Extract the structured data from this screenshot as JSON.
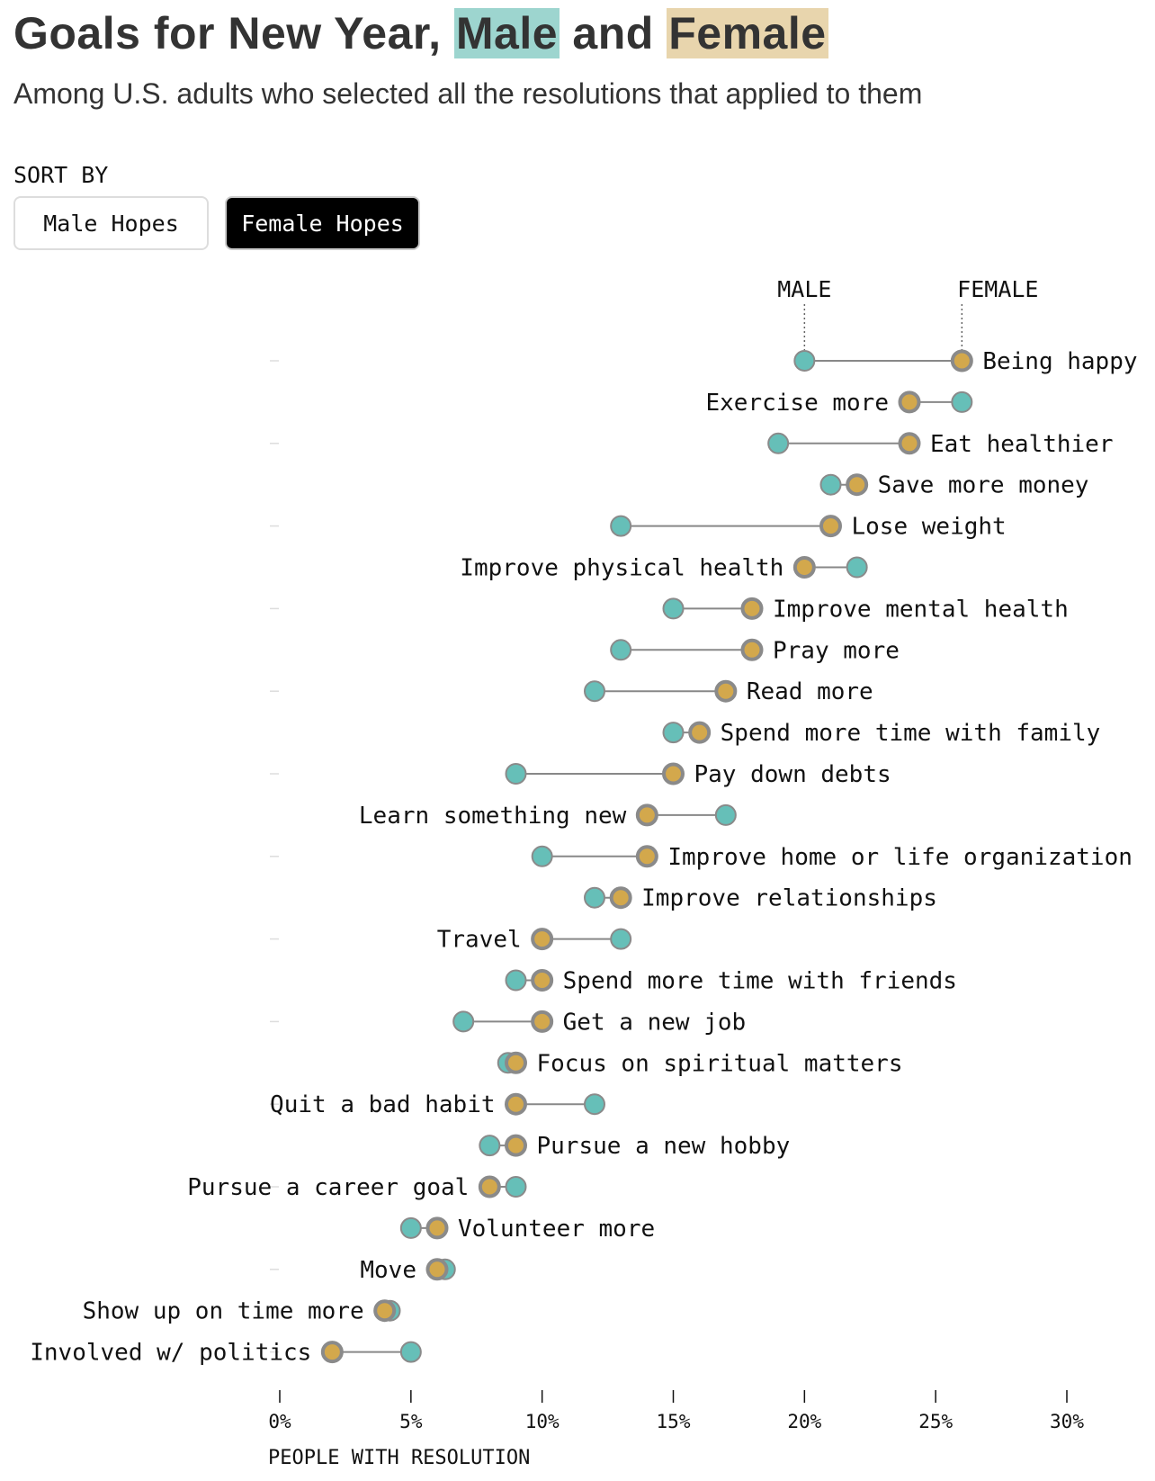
{
  "header": {
    "title_prefix": "Goals for New Year, ",
    "title_male": "Male",
    "title_and": " and ",
    "title_female": "Female",
    "subtitle": "Among U.S. adults who selected all the resolutions that applied to them"
  },
  "sort": {
    "label": "SORT BY",
    "male_button": "Male Hopes",
    "female_button": "Female Hopes",
    "active": "Female Hopes"
  },
  "colors": {
    "male": "#66bfb8",
    "female": "#d3a84c",
    "marker_stroke": "#8a8a8a",
    "male_highlight": "#9dd5cf",
    "female_highlight": "#e8d5ad"
  },
  "chart_data": {
    "type": "dumbbell",
    "xlabel": "PEOPLE WITH RESOLUTION",
    "xlim": [
      0,
      30
    ],
    "xticks": [
      "0%",
      "5%",
      "10%",
      "15%",
      "20%",
      "25%",
      "30%"
    ],
    "xtick_values": [
      0,
      5,
      10,
      15,
      20,
      25,
      30
    ],
    "annotations": {
      "male": "MALE",
      "female": "FEMALE"
    },
    "sorted_by": "Female Hopes",
    "categories": [
      "Being happy",
      "Exercise more",
      "Eat healthier",
      "Save more money",
      "Lose weight",
      "Improve physical health",
      "Improve mental health",
      "Pray more",
      "Read more",
      "Spend more time with family",
      "Pay down debts",
      "Learn something new",
      "Improve home or life organization",
      "Improve relationships",
      "Travel",
      "Spend more time with friends",
      "Get a new job",
      "Focus on spiritual matters",
      "Quit a bad habit",
      "Pursue a new hobby",
      "Pursue a career goal",
      "Volunteer more",
      "Move",
      "Show up on time more",
      "Involved w/ politics"
    ],
    "series": [
      {
        "name": "MALE",
        "values": [
          20,
          26,
          19,
          21,
          13,
          22,
          15,
          13,
          12,
          15,
          9,
          17,
          10,
          12,
          13,
          9,
          7,
          8.7,
          12,
          8,
          9,
          5,
          6.3,
          4.2,
          5
        ]
      },
      {
        "name": "FEMALE",
        "values": [
          26,
          24,
          24,
          22,
          21,
          20,
          18,
          18,
          17,
          16,
          15,
          14,
          14,
          13,
          10,
          10,
          10,
          9,
          9,
          9,
          8,
          6,
          6,
          4,
          2
        ]
      }
    ]
  }
}
